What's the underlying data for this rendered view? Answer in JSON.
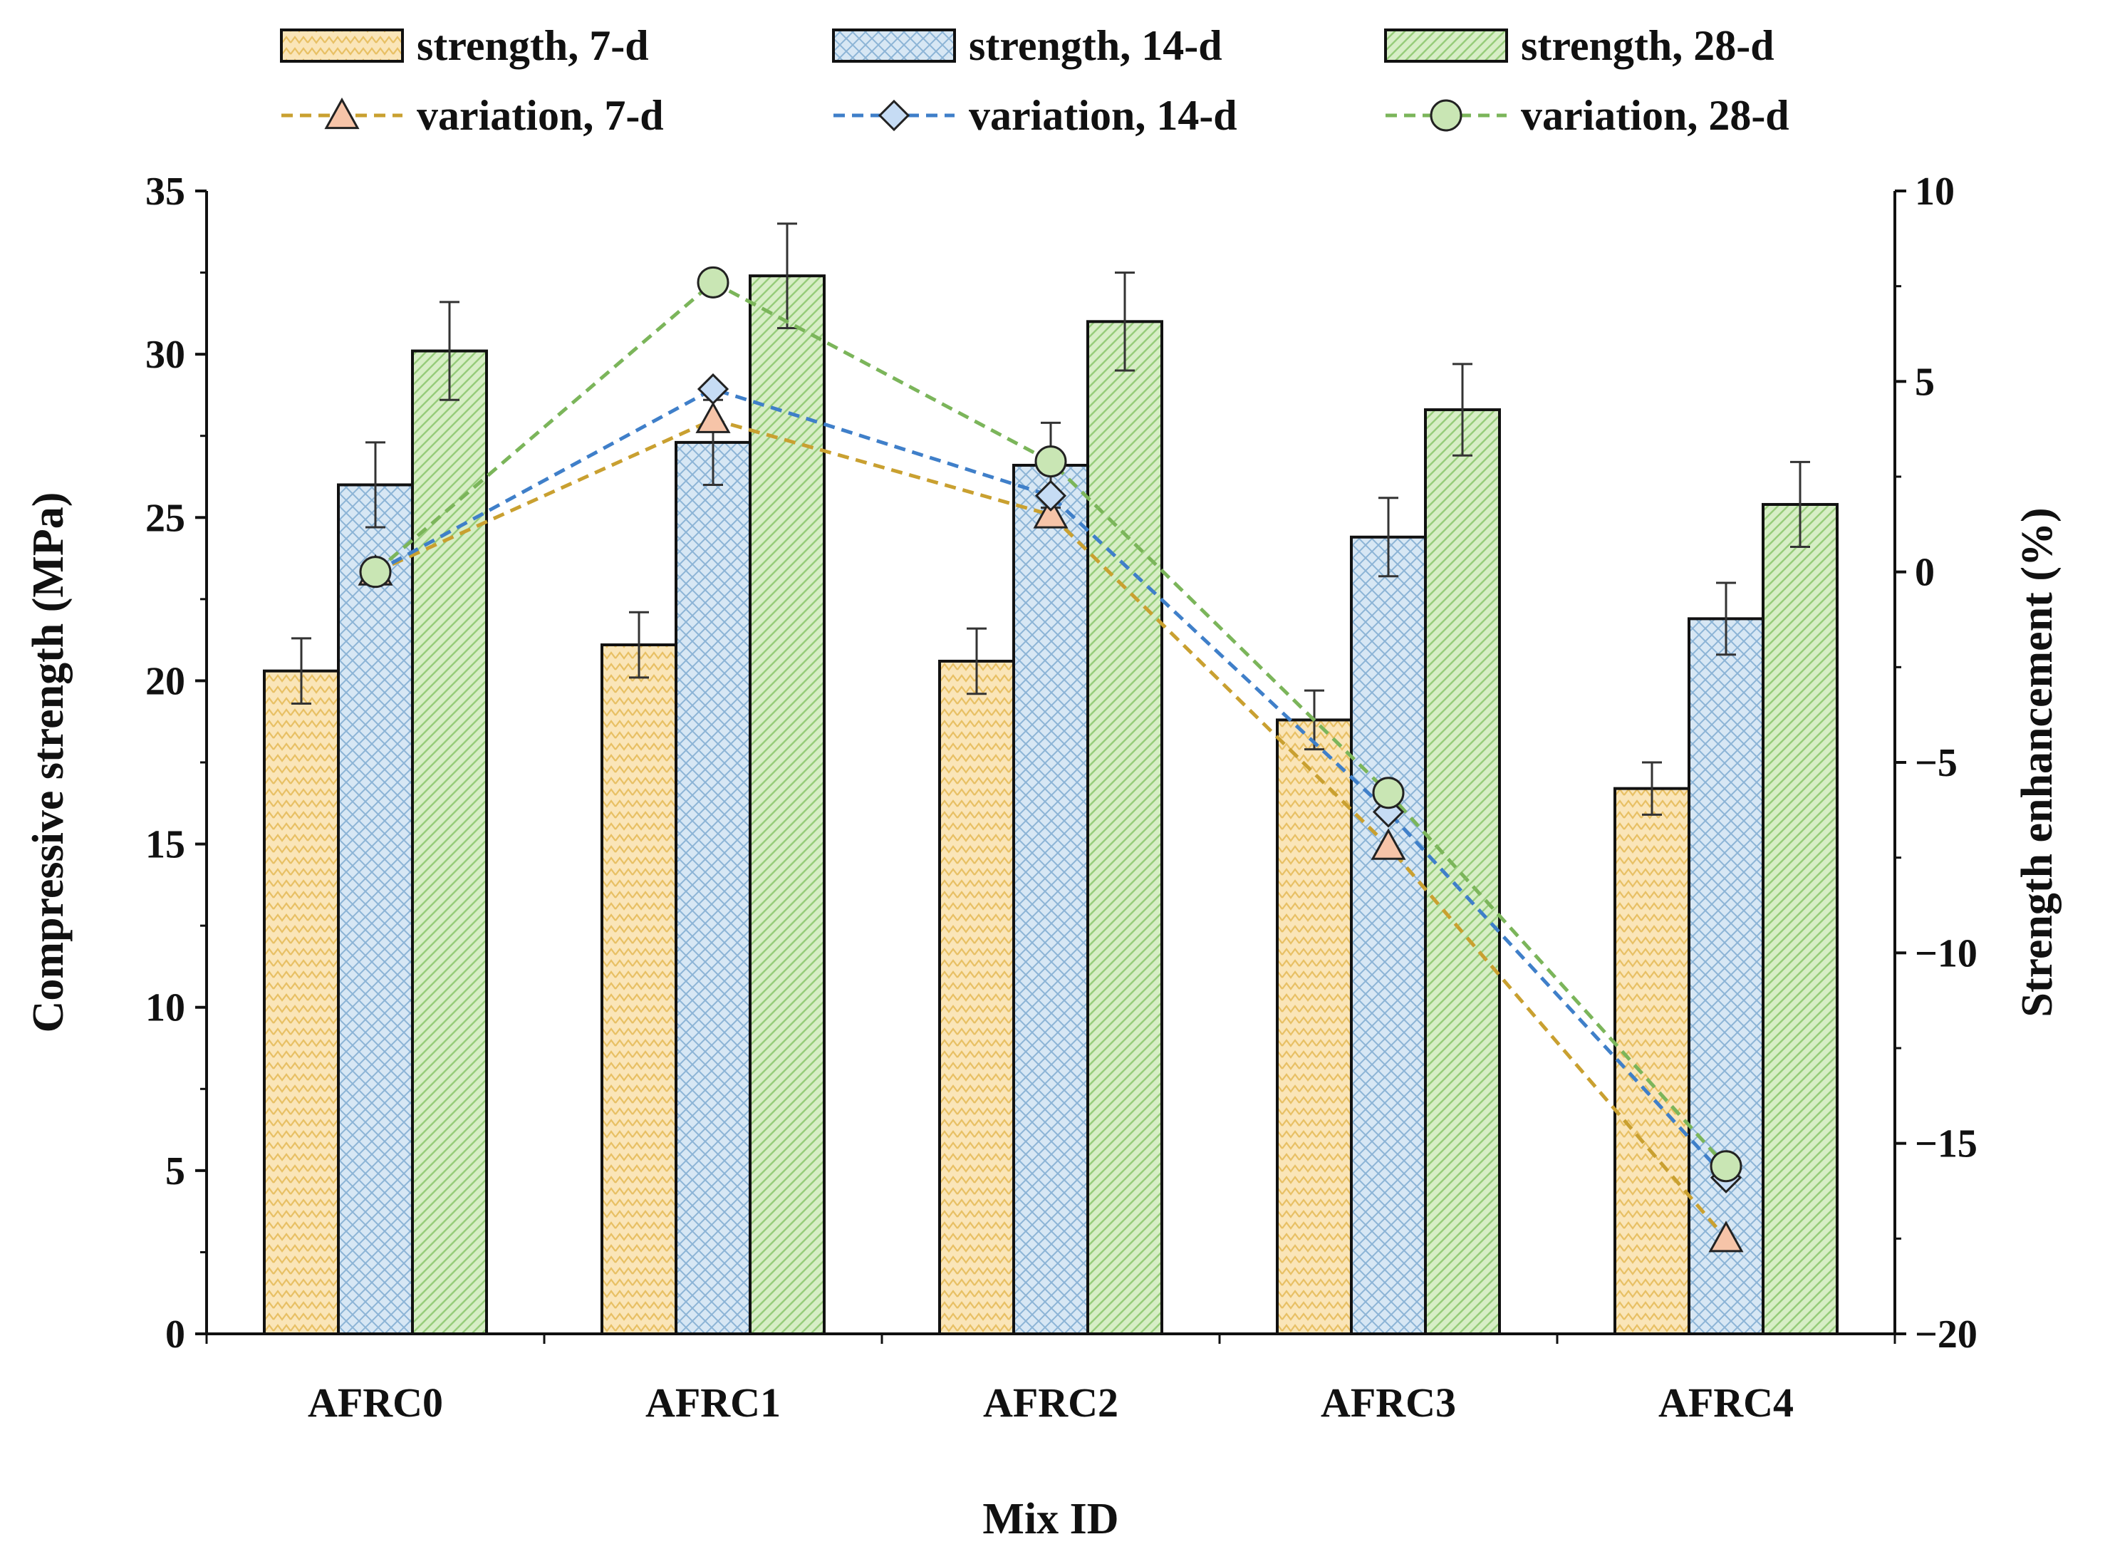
{
  "chart_data": {
    "type": "bar",
    "categories": [
      "AFRC0",
      "AFRC1",
      "AFRC2",
      "AFRC3",
      "AFRC4"
    ],
    "xlabel": "Mix ID",
    "ylabel": "Compressive strength (MPa)",
    "y2label": "Strength enhancement (%)",
    "ylim": [
      0,
      35
    ],
    "yticks": [
      0,
      5,
      10,
      15,
      20,
      25,
      30,
      35
    ],
    "y2lim": [
      -20,
      10
    ],
    "y2ticks": [
      -20,
      -15,
      -10,
      -5,
      0,
      5,
      10
    ],
    "y2tick_labels": [
      "−20",
      "−15",
      "−10",
      "−5",
      "0",
      "5",
      "10"
    ],
    "grid": false,
    "legend_position": "top",
    "bar_series": [
      {
        "name": "strength, 7-d",
        "values": [
          20.3,
          21.1,
          20.6,
          18.8,
          16.7
        ],
        "errors": [
          1.0,
          1.0,
          1.0,
          0.9,
          0.8
        ],
        "fill": "#fae5b8",
        "hatch": "#e8c064",
        "pattern": "zigzag"
      },
      {
        "name": "strength, 14-d",
        "values": [
          26.0,
          27.3,
          26.6,
          24.4,
          21.9
        ],
        "errors": [
          1.3,
          1.3,
          1.3,
          1.2,
          1.1
        ],
        "fill": "#d7e7f4",
        "hatch": "#8cb4d6",
        "pattern": "crosshatch"
      },
      {
        "name": "strength, 28-d",
        "values": [
          30.1,
          32.4,
          31.0,
          28.3,
          25.4
        ],
        "errors": [
          1.5,
          1.6,
          1.5,
          1.4,
          1.3
        ],
        "fill": "#d7eec6",
        "hatch": "#96cc7a",
        "pattern": "diagonal"
      }
    ],
    "line_series": [
      {
        "name": "variation, 7-d",
        "values": [
          0,
          4.0,
          1.5,
          -7.2,
          -17.5
        ],
        "color": "#c9a030",
        "marker": "triangle",
        "marker_fill": "#f6c4a8"
      },
      {
        "name": "variation, 14-d",
        "values": [
          0,
          4.8,
          2.0,
          -6.3,
          -15.9
        ],
        "color": "#3f7fc9",
        "marker": "diamond",
        "marker_fill": "#c6dcf4"
      },
      {
        "name": "variation, 28-d",
        "values": [
          0,
          7.6,
          2.9,
          -5.8,
          -15.6
        ],
        "color": "#7bb55a",
        "marker": "circle",
        "marker_fill": "#c9e6b4"
      }
    ]
  }
}
